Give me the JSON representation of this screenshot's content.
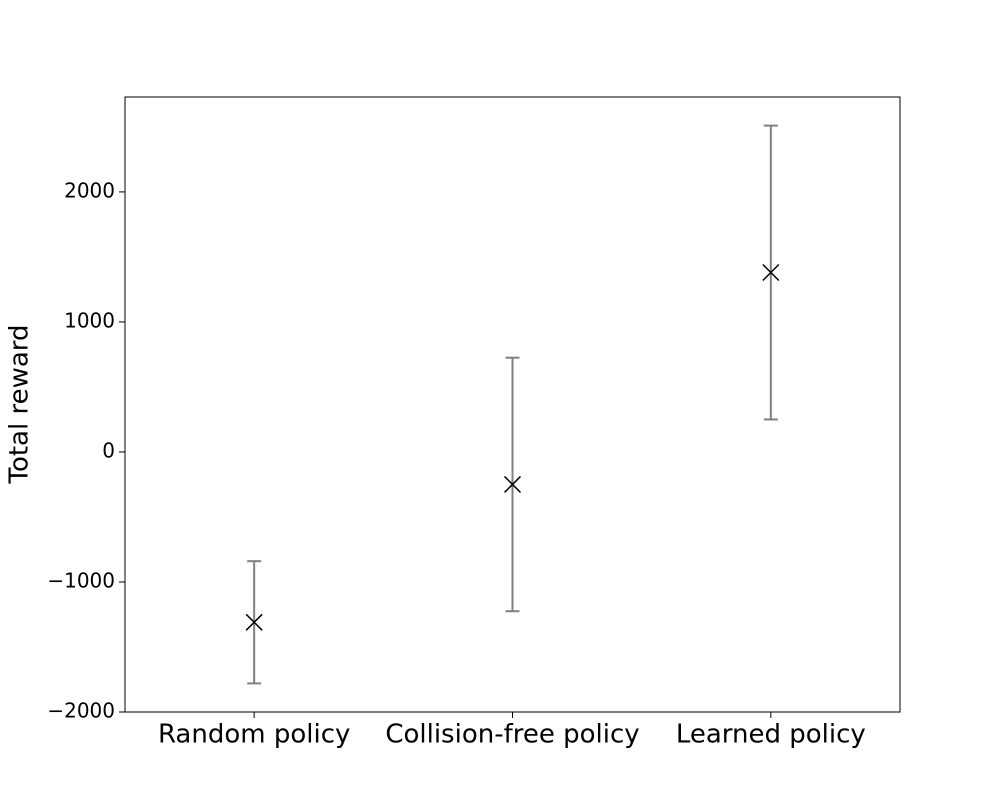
{
  "chart_data": {
    "type": "errorbar",
    "ylabel": "Total reward",
    "categories": [
      "Random policy",
      "Collision-free policy",
      "Learned policy"
    ],
    "values": [
      -1310,
      -250,
      1380
    ],
    "errors": [
      470,
      975,
      1130
    ],
    "color": "#000000",
    "ecolor": "#808080",
    "ylim": [
      -2000,
      2730
    ],
    "yticks": [
      {
        "value": -2000,
        "label": "−2000"
      },
      {
        "value": -1000,
        "label": "−1000"
      },
      0,
      1000,
      2000
    ]
  }
}
